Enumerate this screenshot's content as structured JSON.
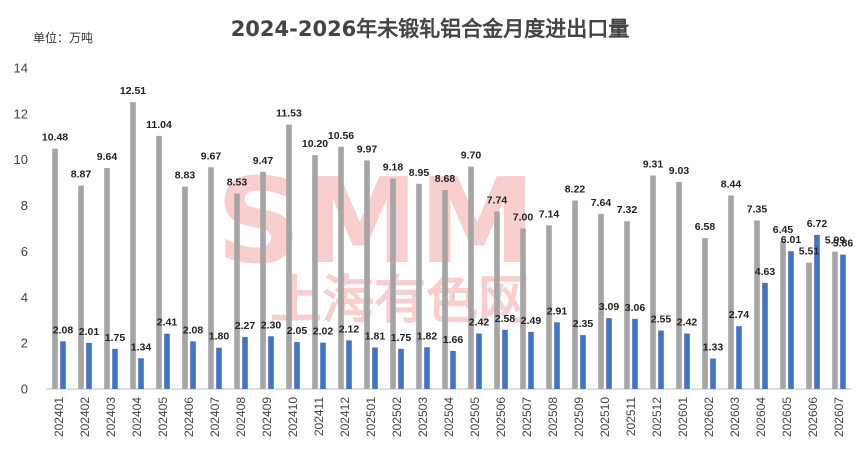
{
  "chart_data": {
    "type": "bar",
    "title": "2024-2026年未锻轧铝合金月度进出口量",
    "unit_label": "单位：万吨",
    "watermark": [
      "SMM",
      "上海有色网"
    ],
    "categories": [
      "202401",
      "202402",
      "202403",
      "202404",
      "202405",
      "202406",
      "202407",
      "202408",
      "202409",
      "202410",
      "202411",
      "202412",
      "202501",
      "202502",
      "202503",
      "202504",
      "202505",
      "202506",
      "202507",
      "202508",
      "202509",
      "202510",
      "202511",
      "202512",
      "202601",
      "202602",
      "202603",
      "202604",
      "202605",
      "202606",
      "202607"
    ],
    "series": [
      {
        "values": [
          10.48,
          8.87,
          9.64,
          12.51,
          11.04,
          8.83,
          9.67,
          8.53,
          9.47,
          11.53,
          10.2,
          10.56,
          9.97,
          9.18,
          8.95,
          8.68,
          9.7,
          7.74,
          7.0,
          7.14,
          8.22,
          7.64,
          7.32,
          9.31,
          9.03,
          6.58,
          8.44,
          7.35,
          6.45,
          5.51,
          5.99
        ]
      },
      {
        "values": [
          2.08,
          2.01,
          1.75,
          1.34,
          2.41,
          2.08,
          1.8,
          2.27,
          2.3,
          2.05,
          2.02,
          2.12,
          1.81,
          1.75,
          1.82,
          1.66,
          2.42,
          2.58,
          2.49,
          2.91,
          2.35,
          3.09,
          3.06,
          2.55,
          2.42,
          1.33,
          2.74,
          4.63,
          6.01,
          6.72,
          5.86
        ]
      }
    ],
    "ylim": [
      0,
      14
    ],
    "yticks": [
      0,
      2,
      4,
      6,
      8,
      10,
      12,
      14
    ],
    "grid": false,
    "legend": "none",
    "colors": {
      "series1": "#a5a5a5",
      "series2": "#4472c4",
      "watermark": "#f4a6a6"
    }
  }
}
